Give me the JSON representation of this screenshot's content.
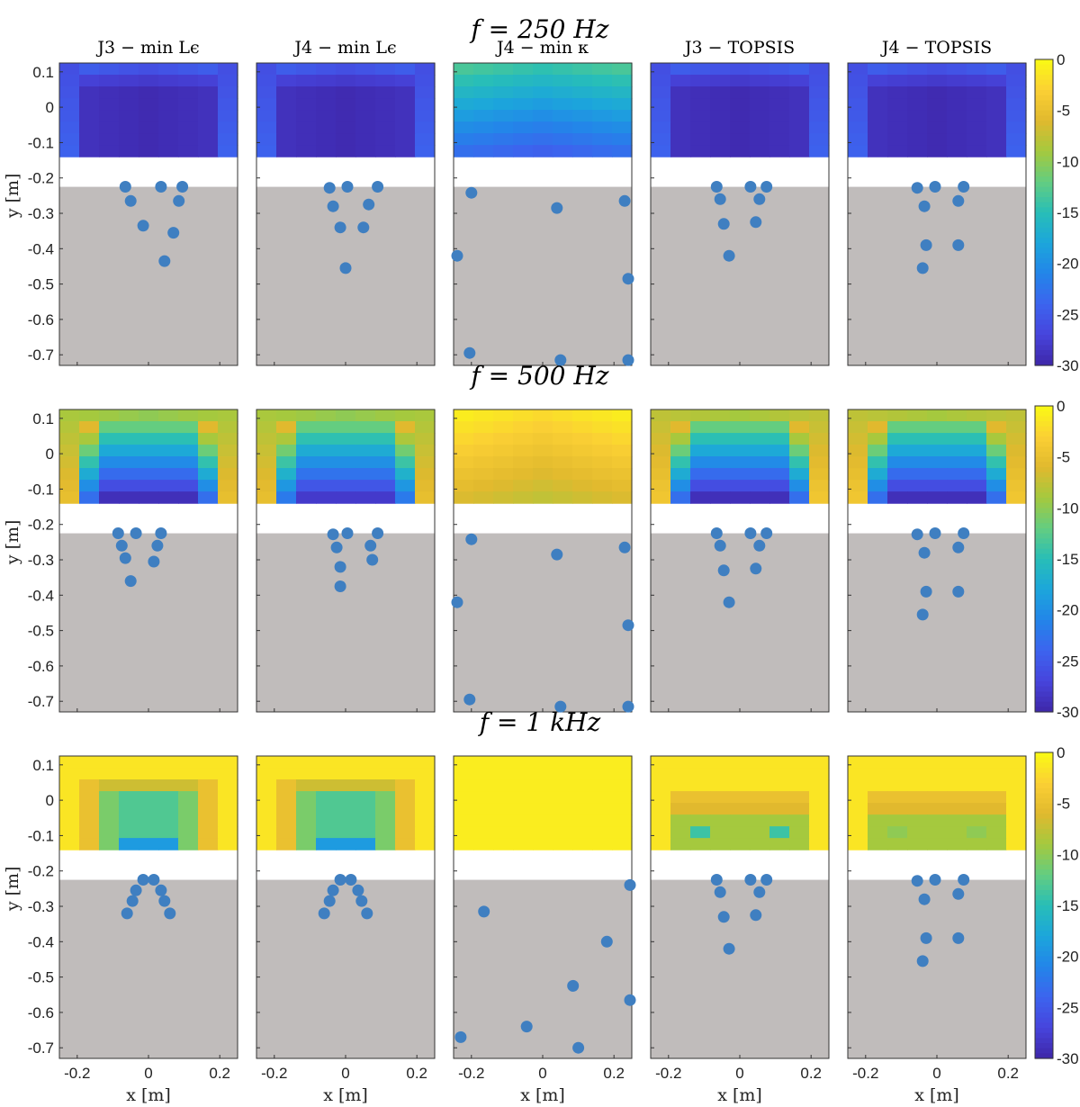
{
  "figure": {
    "row_titles": [
      "f = 250 Hz",
      "f = 500 Hz",
      "f = 1 kHz"
    ],
    "column_titles": [
      "J3 − min Lϵ",
      "J4 − min Lϵ",
      "J4 − min κ",
      "J3 − TOPSIS",
      "J4 − TOPSIS"
    ],
    "xlabel": "x [m]",
    "ylabel": "y [m]",
    "x_ticks": [
      "-0.2",
      "0",
      "0.2"
    ],
    "y_ticks": [
      "0.1",
      "0",
      "-0.1",
      "-0.2",
      "-0.3",
      "-0.4",
      "-0.5",
      "-0.6",
      "-0.7"
    ],
    "colorbar_ticks": [
      "0",
      "-5",
      "-10",
      "-15",
      "-20",
      "-25",
      "-30"
    ]
  },
  "chart_data": {
    "type": "heatmap",
    "xlim": [
      -0.25,
      0.25
    ],
    "ylim": [
      -0.73,
      0.125
    ],
    "heatmap_region_y": [
      -0.14,
      0.125
    ],
    "blank_band_y": [
      -0.225,
      -0.14
    ],
    "source_region_y": [
      -0.73,
      -0.225
    ],
    "clim": [
      -30,
      0
    ],
    "colormap": "parula",
    "colors": {
      "marker": "#3f7fc1",
      "source_region": "#c0bcbb",
      "blank_band": "#ffffff",
      "axis": "#333333"
    },
    "panels": [
      [
        {
          "field": {
            "base": -28.5,
            "edge": -26,
            "top": -26,
            "bottom": -29.5,
            "notch": null
          },
          "markers": [
            [
              -0.065,
              -0.225
            ],
            [
              -0.05,
              -0.265
            ],
            [
              0.035,
              -0.225
            ],
            [
              0.095,
              -0.225
            ],
            [
              0.085,
              -0.265
            ],
            [
              -0.015,
              -0.335
            ],
            [
              0.07,
              -0.355
            ],
            [
              0.045,
              -0.435
            ]
          ]
        },
        {
          "field": {
            "base": -28.5,
            "edge": -26,
            "top": -26,
            "bottom": -29.5,
            "notch": null
          },
          "markers": [
            [
              -0.045,
              -0.228
            ],
            [
              0.005,
              -0.225
            ],
            [
              0.09,
              -0.225
            ],
            [
              -0.035,
              -0.28
            ],
            [
              0.065,
              -0.275
            ],
            [
              -0.015,
              -0.34
            ],
            [
              0.05,
              -0.34
            ],
            [
              0,
              -0.455
            ]
          ]
        },
        {
          "field": {
            "type": "gradient",
            "top": -14,
            "bottom": -25,
            "notch": null
          },
          "markers": [
            [
              -0.2,
              -0.242
            ],
            [
              0.04,
              -0.285
            ],
            [
              0.23,
              -0.265
            ],
            [
              -0.24,
              -0.42
            ],
            [
              0.24,
              -0.485
            ],
            [
              -0.205,
              -0.695
            ],
            [
              0.05,
              -0.715
            ],
            [
              0.24,
              -0.715
            ]
          ]
        },
        {
          "field": {
            "base": -28.5,
            "edge": -26,
            "top": -26,
            "bottom": -29.5,
            "notch": null
          },
          "markers": [
            [
              -0.065,
              -0.225
            ],
            [
              0.03,
              -0.225
            ],
            [
              0.075,
              -0.225
            ],
            [
              -0.055,
              -0.26
            ],
            [
              0.055,
              -0.26
            ],
            [
              -0.045,
              -0.33
            ],
            [
              0.045,
              -0.325
            ],
            [
              -0.03,
              -0.42
            ]
          ]
        },
        {
          "field": {
            "base": -28.5,
            "edge": -26,
            "top": -26,
            "bottom": -29.5,
            "notch": null
          },
          "markers": [
            [
              -0.055,
              -0.228
            ],
            [
              -0.005,
              -0.225
            ],
            [
              0.075,
              -0.225
            ],
            [
              -0.035,
              -0.28
            ],
            [
              0.06,
              -0.265
            ],
            [
              -0.03,
              -0.39
            ],
            [
              0.06,
              -0.39
            ],
            [
              -0.04,
              -0.455
            ]
          ]
        }
      ],
      [
        {
          "field": {
            "type": "u",
            "outer": -9,
            "inner_top": -12,
            "inner_bottom": -29,
            "notch": null
          },
          "markers": [
            [
              -0.085,
              -0.225
            ],
            [
              -0.035,
              -0.225
            ],
            [
              0.035,
              -0.225
            ],
            [
              -0.075,
              -0.26
            ],
            [
              0.025,
              -0.26
            ],
            [
              -0.065,
              -0.295
            ],
            [
              0.015,
              -0.305
            ],
            [
              -0.05,
              -0.36
            ]
          ]
        },
        {
          "field": {
            "type": "u",
            "outer": -9,
            "inner_top": -12,
            "inner_bottom": -28,
            "notch": null
          },
          "markers": [
            [
              -0.035,
              -0.228
            ],
            [
              0.005,
              -0.225
            ],
            [
              0.09,
              -0.225
            ],
            [
              -0.025,
              -0.265
            ],
            [
              0.07,
              -0.26
            ],
            [
              -0.015,
              -0.32
            ],
            [
              0.075,
              -0.3
            ],
            [
              -0.015,
              -0.375
            ]
          ]
        },
        {
          "field": {
            "type": "gradient",
            "top": -2,
            "bottom": -8,
            "notch": null
          },
          "markers": [
            [
              -0.2,
              -0.242
            ],
            [
              0.04,
              -0.285
            ],
            [
              0.23,
              -0.265
            ],
            [
              -0.24,
              -0.42
            ],
            [
              0.24,
              -0.485
            ],
            [
              -0.205,
              -0.695
            ],
            [
              0.05,
              -0.715
            ],
            [
              0.24,
              -0.715
            ]
          ]
        },
        {
          "field": {
            "type": "u",
            "outer": -8,
            "inner_top": -12,
            "inner_bottom": -29,
            "notch": null
          },
          "markers": [
            [
              -0.065,
              -0.225
            ],
            [
              0.03,
              -0.225
            ],
            [
              0.075,
              -0.225
            ],
            [
              -0.055,
              -0.26
            ],
            [
              0.055,
              -0.26
            ],
            [
              -0.045,
              -0.33
            ],
            [
              0.045,
              -0.325
            ],
            [
              -0.03,
              -0.42
            ]
          ]
        },
        {
          "field": {
            "type": "u",
            "outer": -8,
            "inner_top": -12,
            "inner_bottom": -29,
            "notch": null
          },
          "markers": [
            [
              -0.055,
              -0.228
            ],
            [
              -0.005,
              -0.225
            ],
            [
              0.075,
              -0.225
            ],
            [
              -0.035,
              -0.28
            ],
            [
              0.06,
              -0.265
            ],
            [
              -0.03,
              -0.39
            ],
            [
              0.06,
              -0.39
            ],
            [
              -0.04,
              -0.455
            ]
          ]
        }
      ],
      [
        {
          "field": {
            "type": "arch",
            "outer": -1.5,
            "ring": -5,
            "inner": -11,
            "notch": -19
          },
          "markers": [
            [
              -0.06,
              -0.32
            ],
            [
              -0.045,
              -0.285
            ],
            [
              -0.035,
              -0.255
            ],
            [
              -0.015,
              -0.225
            ],
            [
              0.015,
              -0.225
            ],
            [
              0.035,
              -0.255
            ],
            [
              0.045,
              -0.285
            ],
            [
              0.06,
              -0.32
            ]
          ]
        },
        {
          "field": {
            "type": "arch",
            "outer": -1.5,
            "ring": -5,
            "inner": -11,
            "notch": -19
          },
          "markers": [
            [
              -0.06,
              -0.32
            ],
            [
              -0.045,
              -0.285
            ],
            [
              -0.035,
              -0.255
            ],
            [
              -0.015,
              -0.225
            ],
            [
              0.015,
              -0.225
            ],
            [
              0.035,
              -0.255
            ],
            [
              0.045,
              -0.285
            ],
            [
              0.06,
              -0.32
            ]
          ]
        },
        {
          "field": {
            "type": "flat",
            "value": -1,
            "notch": null
          },
          "markers": [
            [
              -0.165,
              -0.315
            ],
            [
              0.245,
              -0.24
            ],
            [
              0.18,
              -0.4
            ],
            [
              0.085,
              -0.525
            ],
            [
              0.245,
              -0.565
            ],
            [
              -0.045,
              -0.64
            ],
            [
              -0.23,
              -0.67
            ],
            [
              0.1,
              -0.7
            ]
          ]
        },
        {
          "field": {
            "type": "band",
            "outer": -1.5,
            "band": -5,
            "low": -9,
            "notch": -14
          },
          "markers": [
            [
              -0.065,
              -0.225
            ],
            [
              0.03,
              -0.225
            ],
            [
              0.075,
              -0.225
            ],
            [
              -0.055,
              -0.26
            ],
            [
              0.055,
              -0.26
            ],
            [
              -0.045,
              -0.33
            ],
            [
              0.045,
              -0.325
            ],
            [
              -0.03,
              -0.42
            ]
          ]
        },
        {
          "field": {
            "type": "band",
            "outer": -1.5,
            "band": -5,
            "low": -9,
            "notch": -10
          },
          "markers": [
            [
              -0.055,
              -0.228
            ],
            [
              -0.005,
              -0.225
            ],
            [
              0.075,
              -0.225
            ],
            [
              -0.035,
              -0.28
            ],
            [
              0.06,
              -0.265
            ],
            [
              -0.03,
              -0.39
            ],
            [
              0.06,
              -0.39
            ],
            [
              -0.04,
              -0.455
            ]
          ]
        }
      ]
    ]
  }
}
